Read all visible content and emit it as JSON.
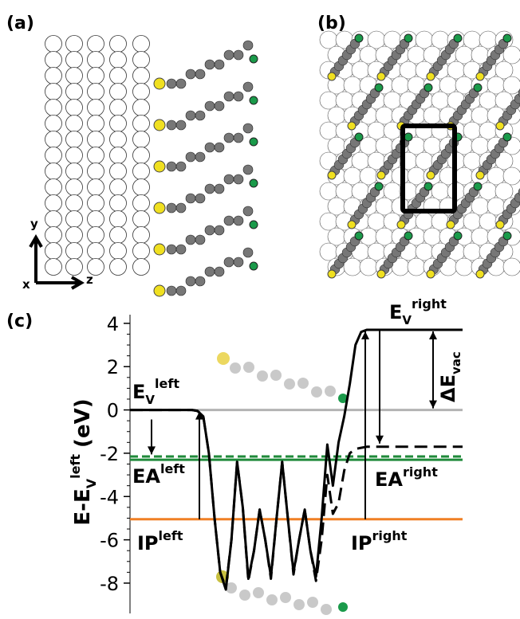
{
  "panels": {
    "a": {
      "label": "(a)",
      "axis_labels": [
        "y",
        "x",
        "z"
      ]
    },
    "b": {
      "label": "(b)"
    }
  },
  "chart_data": {
    "type": "line",
    "label": "(c)",
    "ylabel": {
      "base": "E-E",
      "sub": "V",
      "sup": "left",
      "unit": "(eV)"
    },
    "ylim": [
      -9.4,
      4.4
    ],
    "yticks": [
      4,
      2,
      0,
      -2,
      -4,
      -6,
      -8
    ],
    "series": [
      {
        "color": "#000000",
        "dash": false,
        "values": [
          0,
          0,
          0,
          0,
          0,
          0,
          0,
          0,
          0,
          0,
          0,
          0,
          -0.05,
          -0.3,
          -2,
          -5,
          -7.5,
          -8.3,
          -6,
          -2.4,
          -4.5,
          -7.8,
          -6.5,
          -4.6,
          -6,
          -7.7,
          -5,
          -2.4,
          -5,
          -7.5,
          -6,
          -4.6,
          -6.5,
          -7.7,
          -5,
          -1.6,
          -3.5,
          -1.5,
          -0.3,
          1.2,
          3,
          3.6,
          3.7,
          3.7,
          3.7,
          3.7,
          3.7,
          3.7,
          3.7,
          3.7,
          3.7,
          3.7,
          3.7,
          3.7,
          3.7,
          3.7,
          3.7,
          3.7,
          3.7,
          3.7
        ]
      },
      {
        "color": "#000000",
        "dash": true,
        "values": [
          0,
          0,
          0,
          0,
          0,
          0,
          0,
          0,
          0,
          0,
          0,
          0,
          -0.05,
          -0.3,
          -2,
          -5,
          -7.5,
          -8.2,
          -6,
          -2.4,
          -4.5,
          -7.9,
          -6.5,
          -4.6,
          -6,
          -7.8,
          -5,
          -2.4,
          -5,
          -7.6,
          -6,
          -4.6,
          -6.5,
          -7.9,
          -6,
          -3,
          -4.8,
          -4.3,
          -2.8,
          -2,
          -1.8,
          -1.75,
          -1.7,
          -1.7,
          -1.7,
          -1.7,
          -1.7,
          -1.7,
          -1.7,
          -1.7,
          -1.7,
          -1.7,
          -1.7,
          -1.7,
          -1.7,
          -1.7,
          -1.7,
          -1.7,
          -1.7,
          -1.7
        ]
      }
    ],
    "reference_lines": [
      {
        "value": 0,
        "color": "#b3b3b3",
        "dash": false
      },
      {
        "value": -2.15,
        "color": "#1f8a3a",
        "dash": true
      },
      {
        "value": -2.3,
        "color": "#1f8a3a",
        "dash": false
      },
      {
        "value": -5.05,
        "color": "#f07f24",
        "dash": false
      }
    ],
    "annotations": [
      {
        "base": "E",
        "sub": "V",
        "sup": "left"
      },
      {
        "base": "EA",
        "sup": "left"
      },
      {
        "base": "IP",
        "sup": "left"
      },
      {
        "base": "E",
        "sub": "V",
        "sup": "right"
      },
      {
        "base": "EA",
        "sup": "right"
      },
      {
        "base": "IP",
        "sup": "right"
      },
      {
        "base": "ΔE",
        "sub": "vac"
      }
    ]
  }
}
